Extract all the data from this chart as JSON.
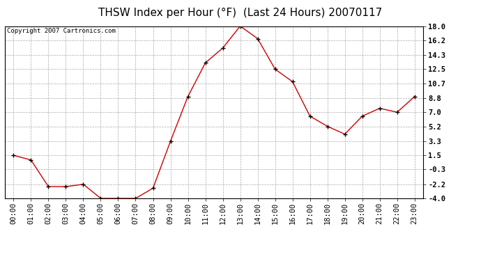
{
  "title": "THSW Index per Hour (°F)  (Last 24 Hours) 20070117",
  "copyright": "Copyright 2007 Cartronics.com",
  "x_labels": [
    "00:00",
    "01:00",
    "02:00",
    "03:00",
    "04:00",
    "05:00",
    "06:00",
    "07:00",
    "08:00",
    "09:00",
    "10:00",
    "11:00",
    "12:00",
    "13:00",
    "14:00",
    "15:00",
    "16:00",
    "17:00",
    "18:00",
    "19:00",
    "20:00",
    "21:00",
    "22:00",
    "23:00"
  ],
  "y_values": [
    1.5,
    0.9,
    -2.5,
    -2.5,
    -2.2,
    -4.0,
    -4.0,
    -4.0,
    -2.7,
    3.3,
    9.0,
    13.3,
    15.2,
    18.0,
    16.4,
    12.5,
    10.9,
    6.5,
    5.2,
    4.2,
    6.5,
    7.5,
    7.0,
    9.0
  ],
  "line_color": "#cc0000",
  "marker_color": "#000000",
  "bg_color": "#ffffff",
  "plot_bg_color": "#ffffff",
  "grid_color": "#aaaaaa",
  "border_color": "#000000",
  "title_color": "#000000",
  "ylim": [
    -4.0,
    18.0
  ],
  "yticks": [
    -4.0,
    -2.2,
    -0.3,
    1.5,
    3.3,
    5.2,
    7.0,
    8.8,
    10.7,
    12.5,
    14.3,
    16.2,
    18.0
  ],
  "title_fontsize": 11,
  "tick_fontsize": 7.5,
  "copyright_fontsize": 6.5
}
